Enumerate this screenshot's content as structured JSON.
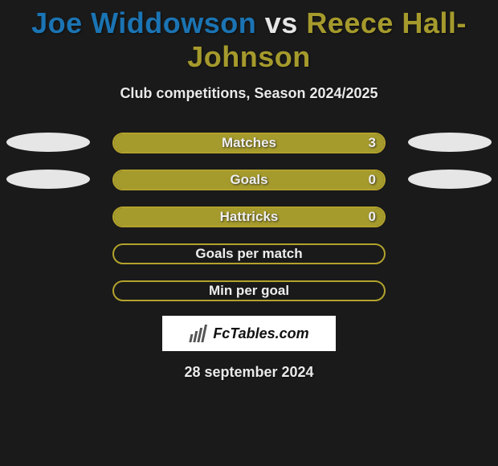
{
  "background_color": "#1a1a1a",
  "title": {
    "player1": "Joe Widdowson",
    "vs": " vs ",
    "player2": "Reece Hall-Johnson",
    "player1_color": "#1b74b3",
    "player2_color": "#a59a2c",
    "vs_color": "#e6e6e6"
  },
  "subtitle": {
    "text": "Club competitions, Season 2024/2025",
    "color": "#e9e9e9"
  },
  "pill_colors": {
    "left": "#e6e6e6",
    "right": "#e6e6e6"
  },
  "bar_style": {
    "border_color": "#b2a22c",
    "fill_color": "#a59a2c",
    "label_color": "#eeeeee",
    "value_color": "#eeeeee"
  },
  "stats": [
    {
      "label": "Matches",
      "value": "3",
      "show_value": true,
      "fill_pct": 100,
      "left_pill": true,
      "right_pill": true
    },
    {
      "label": "Goals",
      "value": "0",
      "show_value": true,
      "fill_pct": 100,
      "left_pill": true,
      "right_pill": true
    },
    {
      "label": "Hattricks",
      "value": "0",
      "show_value": true,
      "fill_pct": 100,
      "left_pill": false,
      "right_pill": false
    },
    {
      "label": "Goals per match",
      "value": "",
      "show_value": false,
      "fill_pct": 0,
      "left_pill": false,
      "right_pill": false
    },
    {
      "label": "Min per goal",
      "value": "",
      "show_value": false,
      "fill_pct": 0,
      "left_pill": false,
      "right_pill": false
    }
  ],
  "logo": {
    "box_bg": "#ffffff",
    "text": "FcTables.com",
    "text_color": "#111111",
    "bars": [
      "#555555",
      "#555555",
      "#555555",
      "#555555",
      "#555555"
    ]
  },
  "date": {
    "text": "28 september 2024",
    "color": "#e9e9e9"
  }
}
